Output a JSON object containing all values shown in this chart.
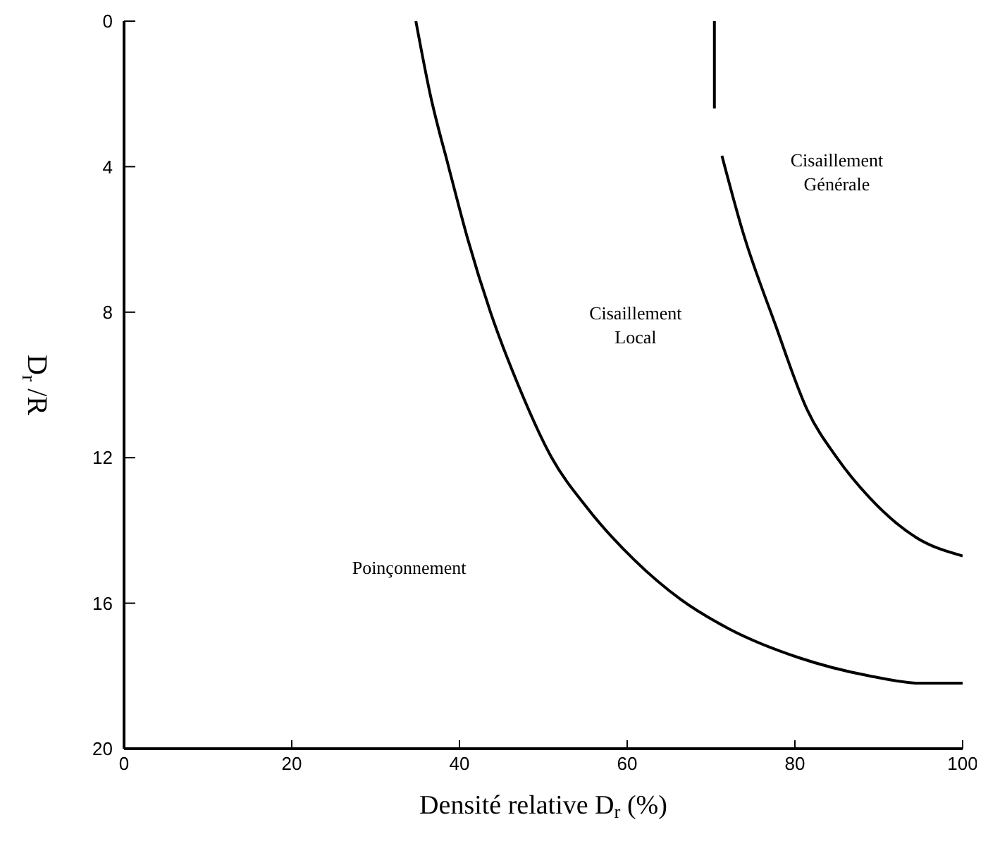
{
  "chart_data": {
    "type": "line",
    "xlabel": "Densité relative D$_{r}$ (%)",
    "ylabel": "D$_{r}$ /R",
    "xlim": [
      0,
      100
    ],
    "xticks": [
      0,
      20,
      40,
      60,
      80,
      100
    ],
    "ylim": [
      20,
      0
    ],
    "yticks": [
      0,
      4,
      8,
      12,
      16,
      20
    ],
    "marker": "none",
    "line_style": "solid",
    "series": [
      {
        "color": "#000000",
        "x": [
          34.8,
          36.5,
          38.7,
          41,
          43.7,
          47,
          51,
          55.3,
          60.8,
          66.4,
          72.1,
          80.5,
          88.9,
          95,
          100
        ],
        "values": [
          0,
          2,
          4,
          6,
          8,
          10,
          12,
          13.4,
          14.8,
          15.9,
          16.7,
          17.5,
          18,
          18.2,
          18.2
        ]
      },
      {
        "color": "#000000",
        "x": [
          70.4,
          70.4,
          70.8,
          71.3,
          73.8,
          77.6,
          81.5,
          85,
          88.9,
          94.5,
          100
        ],
        "values": [
          0,
          2.4,
          null,
          3.7,
          5.8,
          8.3,
          10.7,
          12,
          13.1,
          14.2,
          14.7
        ]
      }
    ],
    "annotations": [
      "Cisaillement\nGénérale",
      "Cisaillement\nLocal",
      "Poinçonnement"
    ]
  }
}
